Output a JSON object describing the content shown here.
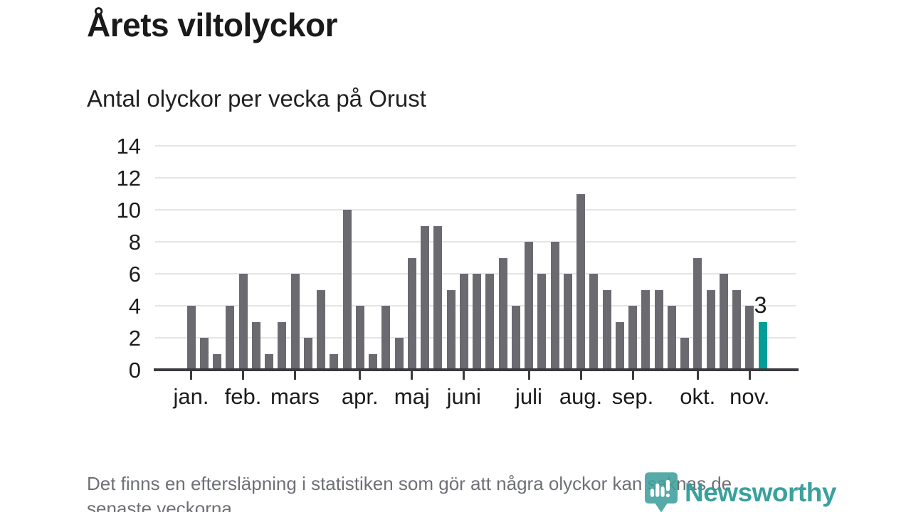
{
  "title": "Årets viltolyckor",
  "subtitle": "Antal olyckor per vecka på Orust",
  "footnote": {
    "line1": "Det finns en eftersläpning i statistiken som gör att några olyckor kan saknas de",
    "line2": "senaste veckorna."
  },
  "logo": {
    "label": "Newsworthy",
    "icon": "newsworthy-pin-barchart-icon",
    "color": "#2f9c99"
  },
  "chart_data": {
    "type": "bar",
    "title": "Årets viltolyckor",
    "subtitle": "Antal olyckor per vecka på Orust",
    "x_unit": "vecka",
    "ylabel": "",
    "xlabel": "",
    "ylim": [
      0,
      14
    ],
    "yticks": [
      0,
      2,
      4,
      6,
      8,
      10,
      12,
      14
    ],
    "grid": "horizontal",
    "values": [
      4,
      2,
      1,
      4,
      6,
      3,
      1,
      3,
      6,
      2,
      5,
      1,
      10,
      4,
      1,
      4,
      2,
      7,
      9,
      9,
      5,
      6,
      6,
      6,
      7,
      4,
      8,
      6,
      8,
      6,
      11,
      6,
      5,
      3,
      4,
      5,
      5,
      4,
      2,
      7,
      5,
      6,
      5,
      4,
      3
    ],
    "month_ticks": [
      {
        "label": "jan.",
        "week": 0
      },
      {
        "label": "feb.",
        "week": 4
      },
      {
        "label": "mars",
        "week": 8
      },
      {
        "label": "apr.",
        "week": 13
      },
      {
        "label": "maj",
        "week": 17
      },
      {
        "label": "juni",
        "week": 21
      },
      {
        "label": "juli",
        "week": 26
      },
      {
        "label": "aug.",
        "week": 30
      },
      {
        "label": "sep.",
        "week": 34
      },
      {
        "label": "okt.",
        "week": 39
      },
      {
        "label": "nov.",
        "week": 43
      }
    ],
    "highlight_last": true,
    "annotation": {
      "text": "3",
      "week": 44
    },
    "colors": {
      "bar": "#6b6a70",
      "highlight": "#009e96",
      "axis": "#3b3b3e",
      "grid": "#e4e4e4"
    },
    "legend": null
  }
}
